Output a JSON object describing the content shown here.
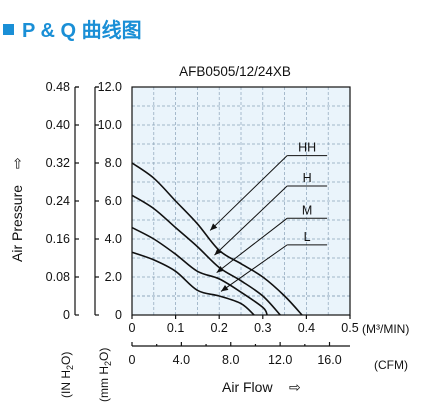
{
  "header": {
    "title": "P & Q 曲线图",
    "accent_color": "#1a8fd6"
  },
  "chart_data": {
    "type": "line",
    "title": "AFB0505/12/24XB",
    "plot_background": "#eaf4fb",
    "grid": true,
    "x_primary": {
      "unit_label": "(M³/MIN)",
      "range": [
        0,
        0.5
      ],
      "ticks": [
        "0",
        "0.1",
        "0.2",
        "0.3",
        "0.4",
        "0.5"
      ]
    },
    "x_secondary": {
      "unit_label": "(CFM)",
      "range": [
        0,
        17.66
      ],
      "ticks": [
        "0",
        "4.0",
        "8.0",
        "12.0",
        "16.0"
      ],
      "tick_values": [
        0,
        4,
        8,
        12,
        16
      ]
    },
    "xlabel": "Air Flow",
    "xlabel_arrow": "⇨",
    "y_primary": {
      "unit_label": "(mm H2O)",
      "range": [
        0,
        12
      ],
      "ticks": [
        "0",
        "2.0",
        "4.0",
        "6.0",
        "8.0",
        "10.0",
        "12.0"
      ]
    },
    "y_secondary": {
      "unit_label": "(IN H2O)",
      "range": [
        0,
        0.48
      ],
      "ticks": [
        "0",
        "0.08",
        "0.16",
        "0.24",
        "0.32",
        "0.40",
        "0.48"
      ]
    },
    "ylabel": "Air Pressure",
    "ylabel_arrow": "⇨",
    "series": [
      {
        "name": "HH",
        "points": [
          [
            0,
            8.0
          ],
          [
            0.05,
            7.2
          ],
          [
            0.1,
            6.0
          ],
          [
            0.15,
            4.8
          ],
          [
            0.2,
            3.4
          ],
          [
            0.25,
            2.7
          ],
          [
            0.3,
            2.0
          ],
          [
            0.35,
            1.0
          ],
          [
            0.39,
            0
          ]
        ]
      },
      {
        "name": "H",
        "points": [
          [
            0,
            6.3
          ],
          [
            0.05,
            5.6
          ],
          [
            0.1,
            4.6
          ],
          [
            0.15,
            3.6
          ],
          [
            0.2,
            2.5
          ],
          [
            0.25,
            1.8
          ],
          [
            0.3,
            1.0
          ],
          [
            0.34,
            0
          ]
        ]
      },
      {
        "name": "M",
        "points": [
          [
            0,
            4.6
          ],
          [
            0.05,
            4.0
          ],
          [
            0.1,
            3.2
          ],
          [
            0.15,
            2.3
          ],
          [
            0.2,
            1.9
          ],
          [
            0.25,
            1.2
          ],
          [
            0.3,
            0.4
          ],
          [
            0.31,
            0
          ]
        ]
      },
      {
        "name": "L",
        "points": [
          [
            0,
            3.3
          ],
          [
            0.05,
            2.9
          ],
          [
            0.1,
            2.3
          ],
          [
            0.15,
            1.3
          ],
          [
            0.2,
            1.0
          ],
          [
            0.25,
            0.6
          ],
          [
            0.28,
            0
          ]
        ]
      }
    ]
  }
}
